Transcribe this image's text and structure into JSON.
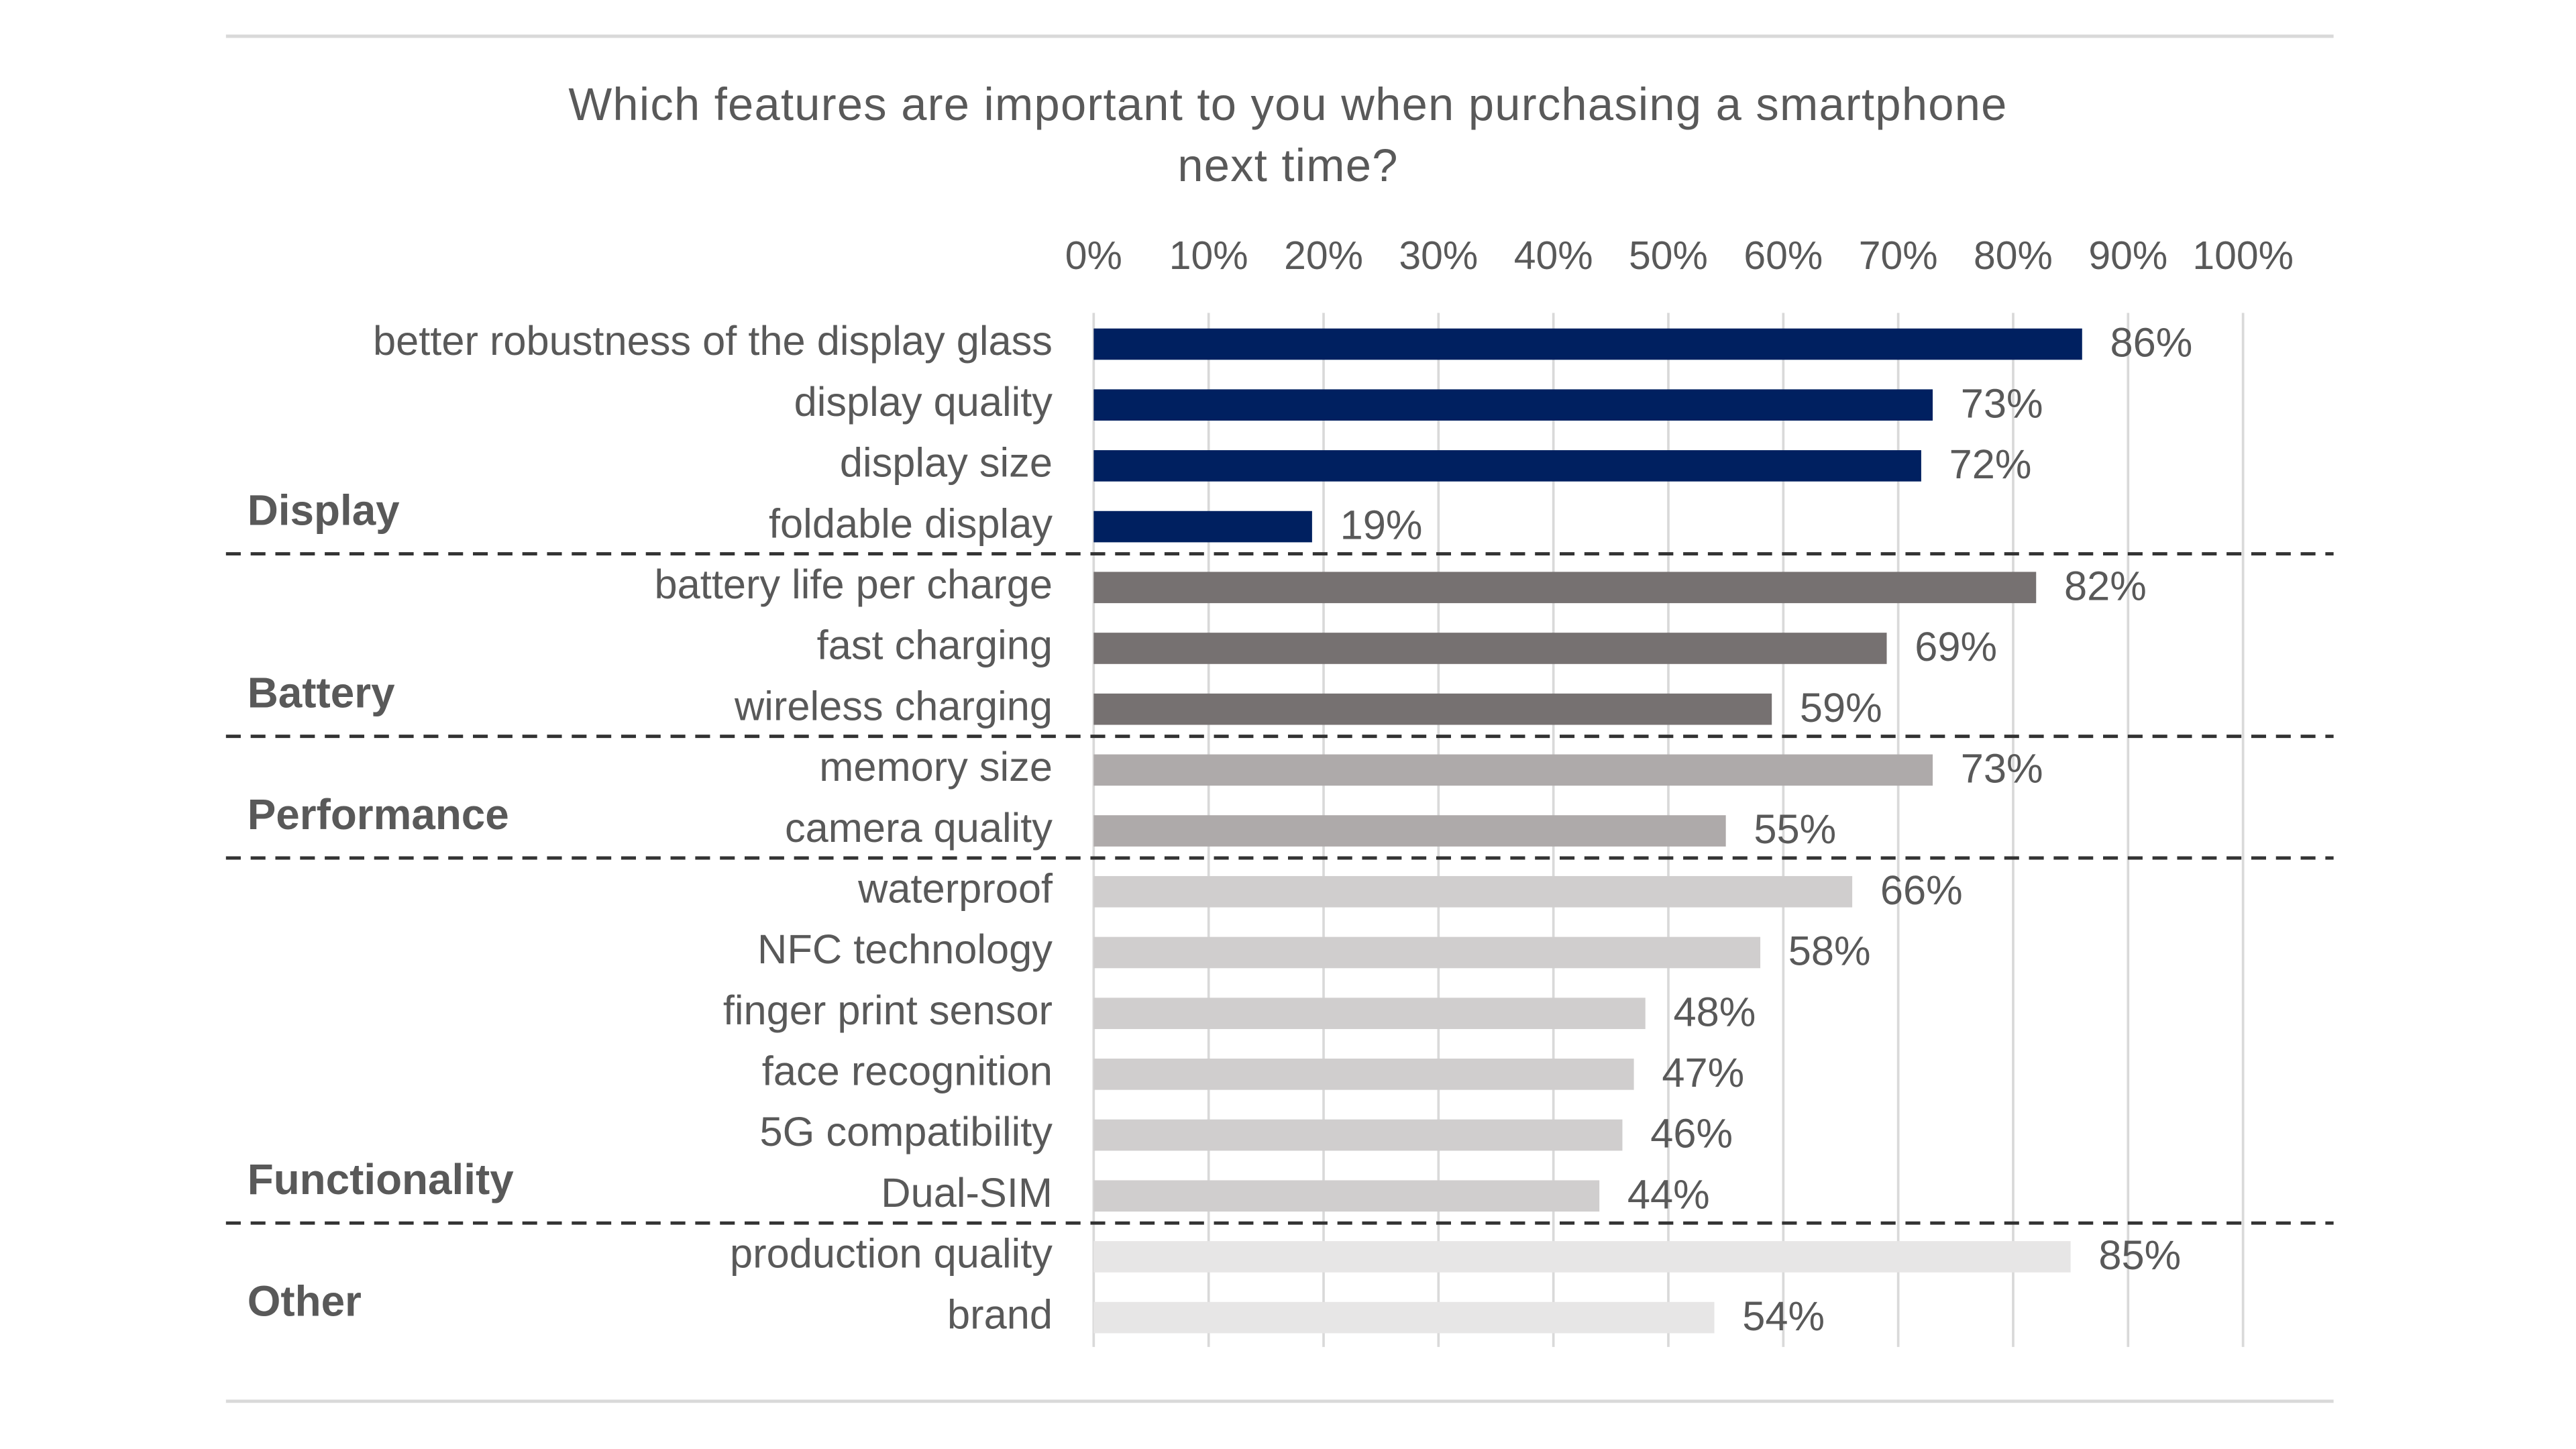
{
  "chart_data": {
    "type": "bar",
    "orientation": "horizontal",
    "title": "Which features are important to you when purchasing a smartphone next time?",
    "xlim": [
      0,
      100
    ],
    "xticks": [
      {
        "value": 0,
        "label": "0%"
      },
      {
        "value": 10,
        "label": "10%"
      },
      {
        "value": 20,
        "label": "20%"
      },
      {
        "value": 30,
        "label": "30%"
      },
      {
        "value": 40,
        "label": "40%"
      },
      {
        "value": 50,
        "label": "50%"
      },
      {
        "value": 60,
        "label": "60%"
      },
      {
        "value": 70,
        "label": "70%"
      },
      {
        "value": 80,
        "label": "80%"
      },
      {
        "value": 90,
        "label": "90%"
      },
      {
        "value": 100,
        "label": "100%"
      }
    ],
    "grid": true,
    "series": [
      {
        "name": "Display",
        "color": "#002060",
        "label_color": "#1f3b7a",
        "categories": [
          "better robustness of the display glass",
          "display quality",
          "display size",
          "foldable display"
        ],
        "values": [
          86,
          73,
          72,
          19
        ],
        "value_labels": [
          "86%",
          "73%",
          "72%",
          "19%"
        ]
      },
      {
        "name": "Battery",
        "color": "#767171",
        "label_color": "#404040",
        "categories": [
          "battery life per charge",
          "fast charging",
          "wireless charging"
        ],
        "values": [
          82,
          69,
          59
        ],
        "value_labels": [
          "82%",
          "69%",
          "59%"
        ]
      },
      {
        "name": "Performance",
        "color": "#aeaaaa",
        "label_color": "#7f7f7f",
        "categories": [
          "memory size",
          "camera quality"
        ],
        "values": [
          73,
          55
        ],
        "value_labels": [
          "73%",
          "55%"
        ]
      },
      {
        "name": "Functionality",
        "color": "#d0cece",
        "label_color": "#bfbfbf",
        "categories": [
          "waterproof",
          "NFC technology",
          "finger print sensor",
          "face recognition",
          "5G compatibility",
          "Dual-SIM"
        ],
        "values": [
          66,
          58,
          48,
          47,
          46,
          44
        ],
        "value_labels": [
          "66%",
          "58%",
          "48%",
          "47%",
          "46%",
          "44%"
        ]
      },
      {
        "name": "Other",
        "color": "#e7e6e6",
        "label_color": "#d9d9d9",
        "categories": [
          "production quality",
          "brand"
        ],
        "values": [
          85,
          54
        ],
        "value_labels": [
          "85%",
          "54%"
        ]
      }
    ]
  }
}
